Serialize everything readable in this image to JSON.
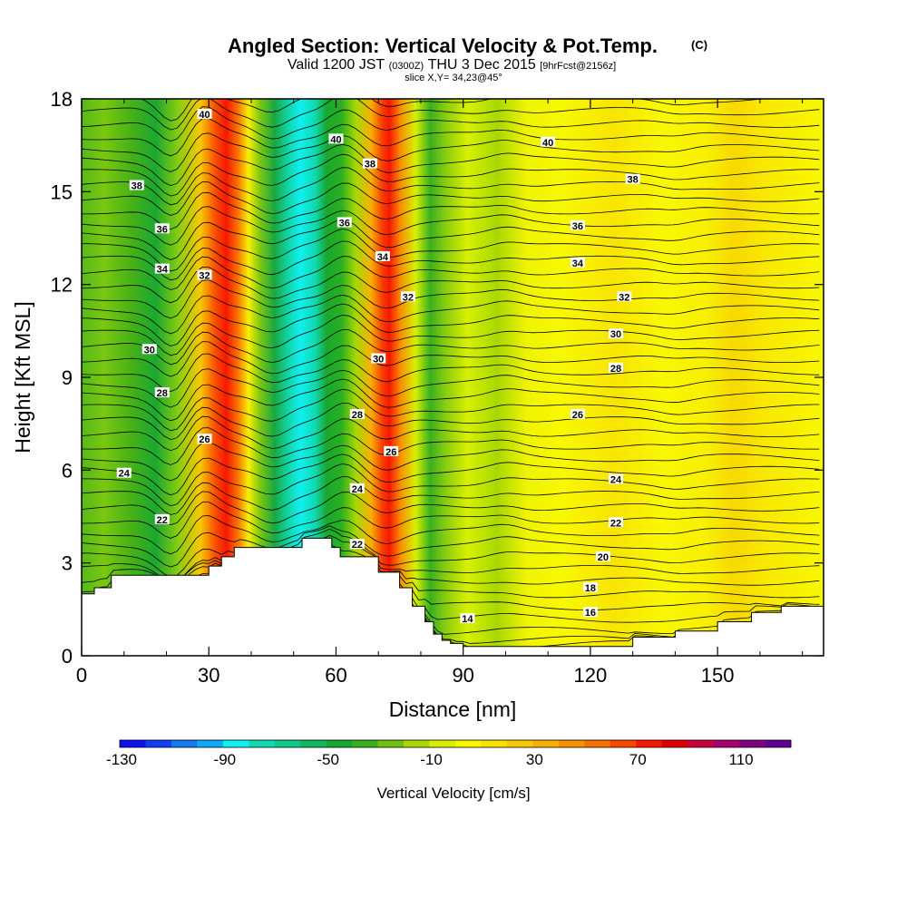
{
  "header": {
    "title": "Angled Section: Vertical Velocity & Pot.Temp.",
    "title_unit": "(C)",
    "valid_prefix": "Valid 1200 JST",
    "valid_z": "(0300Z)",
    "valid_date": "THU 3 Dec 2015",
    "forecast": "[9hrFcst@2156z]",
    "slice": "slice X,Y= 34,23@45°"
  },
  "chart_data": {
    "type": "heatmap",
    "xlabel": "Distance [nm]",
    "ylabel": "Height [Kft MSL]",
    "xlim": [
      0,
      175
    ],
    "ylim": [
      0,
      18
    ],
    "x_ticks": [
      "0",
      "30",
      "60",
      "90",
      "120",
      "150"
    ],
    "y_ticks": [
      "0",
      "3",
      "6",
      "9",
      "12",
      "15",
      "18"
    ],
    "terrain": {
      "x": [
        0,
        0,
        3,
        3,
        7,
        7,
        30,
        30,
        33,
        33,
        36,
        36,
        52,
        52,
        59,
        59,
        61,
        61,
        70,
        70,
        75,
        75,
        78,
        78,
        81,
        81,
        83,
        83,
        85,
        85,
        87,
        87,
        90,
        90,
        100,
        100,
        110,
        110,
        130,
        130,
        140,
        140,
        150,
        150,
        158,
        158,
        165,
        165,
        175
      ],
      "y": [
        2.0,
        2.0,
        2.0,
        2.2,
        2.2,
        2.6,
        2.6,
        2.9,
        2.9,
        3.2,
        3.2,
        3.5,
        3.5,
        3.8,
        3.8,
        3.5,
        3.5,
        3.2,
        3.2,
        2.7,
        2.7,
        2.2,
        2.2,
        1.6,
        1.6,
        1.1,
        1.1,
        0.7,
        0.7,
        0.5,
        0.5,
        0.4,
        0.4,
        0.3,
        0.3,
        0.3,
        0.3,
        0.3,
        0.3,
        0.6,
        0.6,
        0.8,
        0.8,
        1.1,
        1.1,
        1.4,
        1.4,
        1.6,
        1.6
      ]
    },
    "isotherm_labels": [
      {
        "x": 29,
        "y": 17.5,
        "text": "40"
      },
      {
        "x": 60,
        "y": 16.7,
        "text": "40"
      },
      {
        "x": 110,
        "y": 16.6,
        "text": "40"
      },
      {
        "x": 13,
        "y": 15.2,
        "text": "38"
      },
      {
        "x": 68,
        "y": 15.9,
        "text": "38"
      },
      {
        "x": 130,
        "y": 15.4,
        "text": "38"
      },
      {
        "x": 19,
        "y": 13.8,
        "text": "36"
      },
      {
        "x": 62,
        "y": 14.0,
        "text": "36"
      },
      {
        "x": 117,
        "y": 13.9,
        "text": "36"
      },
      {
        "x": 19,
        "y": 12.5,
        "text": "34"
      },
      {
        "x": 71,
        "y": 12.9,
        "text": "34"
      },
      {
        "x": 117,
        "y": 12.7,
        "text": "34"
      },
      {
        "x": 29,
        "y": 12.3,
        "text": "32"
      },
      {
        "x": 77,
        "y": 11.6,
        "text": "32"
      },
      {
        "x": 128,
        "y": 11.6,
        "text": "32"
      },
      {
        "x": 16,
        "y": 9.9,
        "text": "30"
      },
      {
        "x": 70,
        "y": 9.6,
        "text": "30"
      },
      {
        "x": 126,
        "y": 10.4,
        "text": "30"
      },
      {
        "x": 19,
        "y": 8.5,
        "text": "28"
      },
      {
        "x": 65,
        "y": 7.8,
        "text": "28"
      },
      {
        "x": 126,
        "y": 9.3,
        "text": "28"
      },
      {
        "x": 29,
        "y": 7.0,
        "text": "26"
      },
      {
        "x": 73,
        "y": 6.6,
        "text": "26"
      },
      {
        "x": 117,
        "y": 7.8,
        "text": "26"
      },
      {
        "x": 10,
        "y": 5.9,
        "text": "24"
      },
      {
        "x": 65,
        "y": 5.4,
        "text": "24"
      },
      {
        "x": 126,
        "y": 5.7,
        "text": "24"
      },
      {
        "x": 19,
        "y": 4.4,
        "text": "22"
      },
      {
        "x": 65,
        "y": 3.6,
        "text": "22"
      },
      {
        "x": 126,
        "y": 4.3,
        "text": "22"
      },
      {
        "x": 123,
        "y": 3.2,
        "text": "20"
      },
      {
        "x": 120,
        "y": 2.2,
        "text": "18"
      },
      {
        "x": 120,
        "y": 1.4,
        "text": "16"
      },
      {
        "x": 91,
        "y": 1.2,
        "text": "14"
      }
    ],
    "colorbar": {
      "title": "Vertical Velocity [cm/s]",
      "labels": [
        "-130",
        "-90",
        "-50",
        "-10",
        "30",
        "70",
        "110"
      ],
      "colors": [
        "#1010ee",
        "#1040f0",
        "#1478f0",
        "#10a8f8",
        "#10f0f0",
        "#10d8b0",
        "#10c888",
        "#10b860",
        "#18a830",
        "#38b020",
        "#70c010",
        "#a8d800",
        "#d8f000",
        "#f8f800",
        "#f8e000",
        "#f8c800",
        "#f8b000",
        "#f89000",
        "#f87000",
        "#f84800",
        "#f81800",
        "#e00000",
        "#c8003c",
        "#a8006c",
        "#800080",
        "#600090"
      ]
    }
  }
}
